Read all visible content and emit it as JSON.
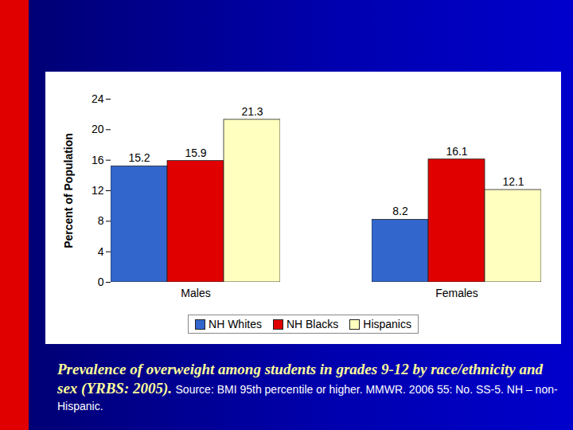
{
  "chart_data": {
    "type": "bar",
    "title": "Prevalence of overweight among students in grades 9-12 by race/ethnicity and sex (YRBS: 2005).",
    "annotations": [
      "Source: BMI 95th percentile or higher. MMWR. 2006 55: No. SS-5. NH – non-Hispanic."
    ],
    "ylabel": "Percent of Population",
    "categories": [
      "Males",
      "Females"
    ],
    "series": [
      {
        "name": "NH Whites",
        "color": "#3366cc",
        "values": [
          15.2,
          8.2
        ]
      },
      {
        "name": "NH Blacks",
        "color": "#e00000",
        "values": [
          15.9,
          16.1
        ]
      },
      {
        "name": "Hispanics",
        "color": "#ffffc0",
        "values": [
          21.3,
          12.1
        ]
      }
    ],
    "ylim": [
      0,
      24
    ],
    "yticks": [
      0,
      4,
      8,
      12,
      16,
      20,
      24
    ],
    "grid": false,
    "data_labels": true,
    "legend": "bottom"
  }
}
